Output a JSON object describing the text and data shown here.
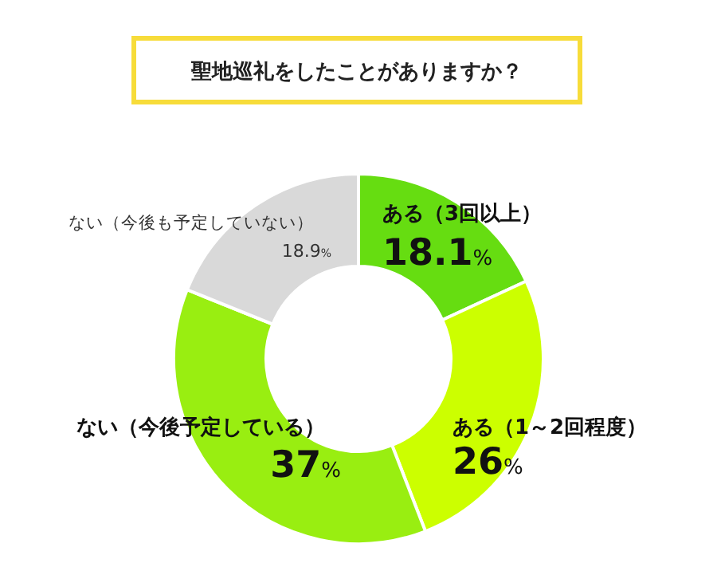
{
  "chart_data": {
    "type": "donut",
    "title": "聖地巡礼をしたことがありますか？",
    "categories": [
      "ある（3回以上）",
      "ある（1～2回程度）",
      "ない（今後予定している）",
      "ない（今後も予定していない）"
    ],
    "values": [
      18.1,
      26,
      37,
      18.9
    ],
    "colors": [
      "#66dd11",
      "#ccff00",
      "#99ee11",
      "#d9d9d9"
    ],
    "value_labels": [
      "18.1%",
      "26%",
      "37%",
      "18.9%"
    ]
  }
}
